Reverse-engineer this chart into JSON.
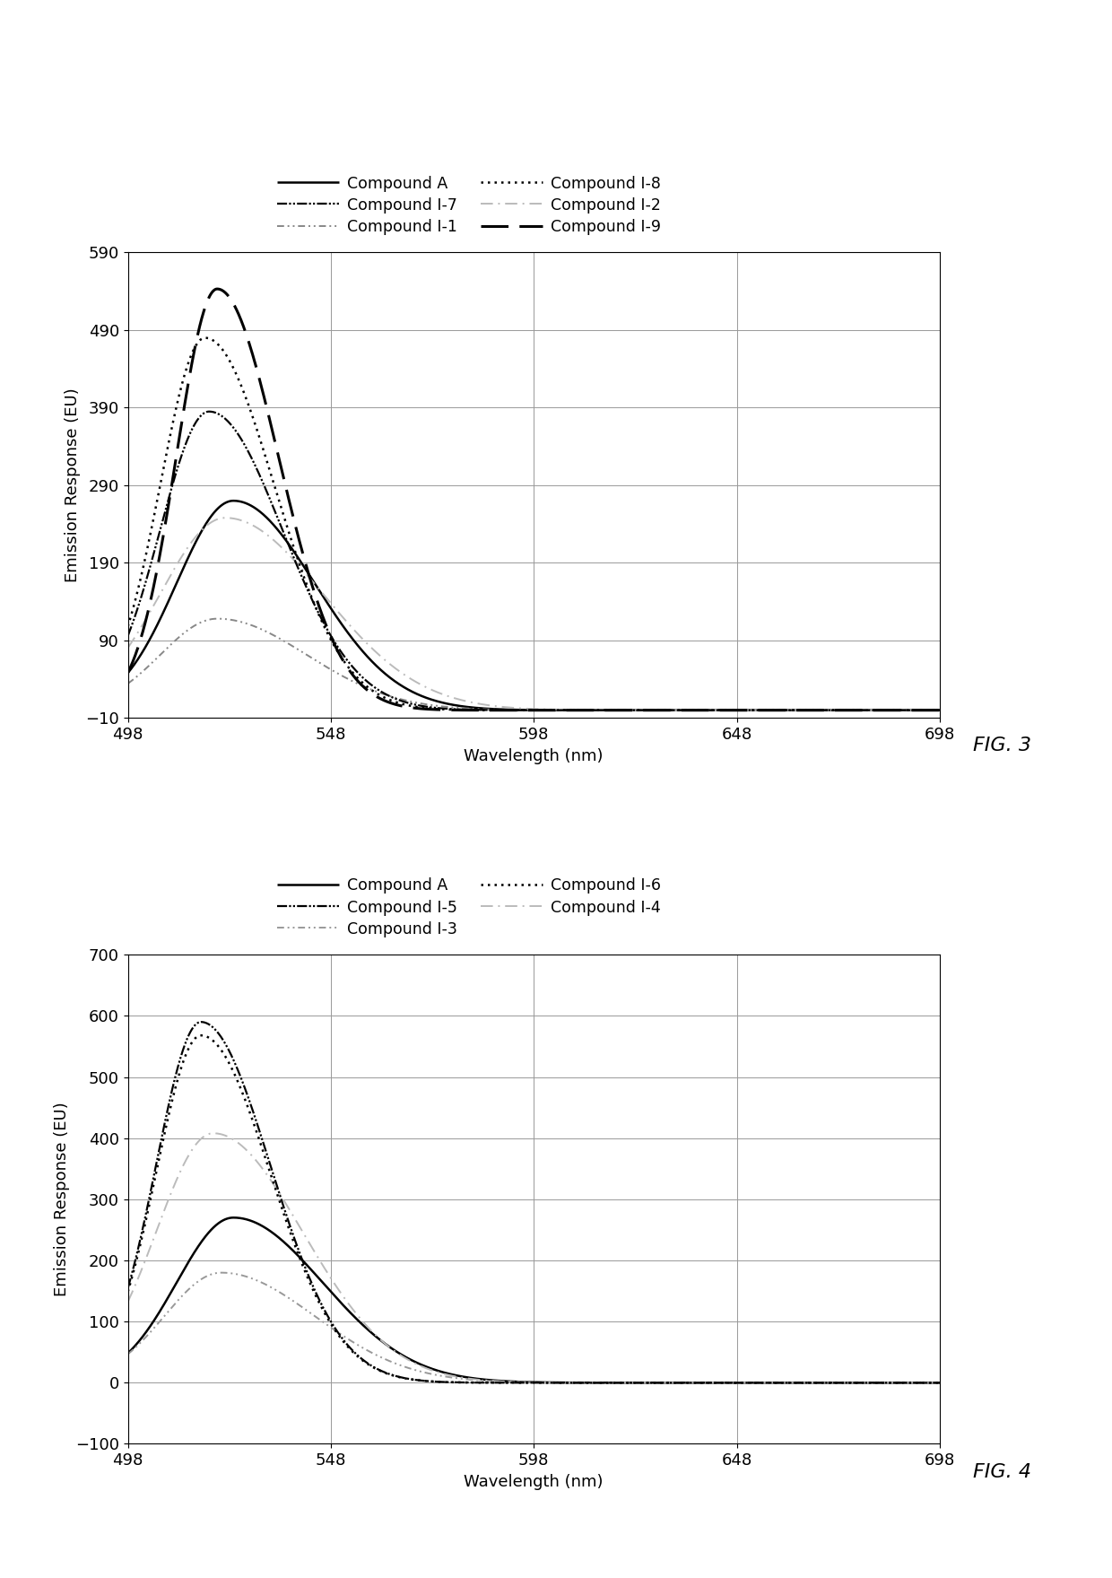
{
  "fig3": {
    "title": "FIG. 3",
    "xlabel": "Wavelength (nm)",
    "ylabel": "Emission Response (EU)",
    "xlim": [
      498,
      698
    ],
    "ylim": [
      -10,
      590
    ],
    "yticks": [
      -10,
      90,
      190,
      290,
      390,
      490,
      590
    ],
    "xticks": [
      498,
      548,
      598,
      648,
      698
    ],
    "compounds": [
      {
        "name": "Compound A",
        "peak_x": 524,
        "peak_y": 270,
        "sigma_l": 14,
        "sigma_r": 20,
        "style": "solid",
        "color": "#000000",
        "lw": 1.8
      },
      {
        "name": "Compound I-1",
        "peak_x": 520,
        "peak_y": 118,
        "sigma_l": 14,
        "sigma_r": 22,
        "style": "dash_dot_dot",
        "color": "#888888",
        "lw": 1.4
      },
      {
        "name": "Compound I-2",
        "peak_x": 522,
        "peak_y": 248,
        "sigma_l": 16,
        "sigma_r": 24,
        "style": "light_dashdot",
        "color": "#bbbbbb",
        "lw": 1.4
      },
      {
        "name": "Compound I-7",
        "peak_x": 518,
        "peak_y": 385,
        "sigma_l": 12,
        "sigma_r": 18,
        "style": "dash_dot_dot2",
        "color": "#000000",
        "lw": 1.6
      },
      {
        "name": "Compound I-8",
        "peak_x": 517,
        "peak_y": 480,
        "sigma_l": 11,
        "sigma_r": 17,
        "style": "dotted",
        "color": "#000000",
        "lw": 1.8
      },
      {
        "name": "Compound I-9",
        "peak_x": 520,
        "peak_y": 543,
        "sigma_l": 10,
        "sigma_r": 15,
        "style": "long_dash",
        "color": "#000000",
        "lw": 2.2
      }
    ],
    "legend": [
      [
        "Compound A",
        "Compound I-7"
      ],
      [
        "Compound I-1",
        "Compound I-8"
      ],
      [
        "Compound I-2",
        "Compound I-9"
      ]
    ]
  },
  "fig4": {
    "title": "FIG. 4",
    "xlabel": "Wavelength (nm)",
    "ylabel": "Emission Response (EU)",
    "xlim": [
      498,
      698
    ],
    "ylim": [
      -100,
      700
    ],
    "yticks": [
      -100,
      0,
      100,
      200,
      300,
      400,
      500,
      600,
      700
    ],
    "xticks": [
      498,
      548,
      598,
      648,
      698
    ],
    "compounds": [
      {
        "name": "Compound A",
        "peak_x": 524,
        "peak_y": 270,
        "sigma_l": 14,
        "sigma_r": 22,
        "style": "solid",
        "color": "#000000",
        "lw": 1.8
      },
      {
        "name": "Compound I-3",
        "peak_x": 521,
        "peak_y": 180,
        "sigma_l": 14,
        "sigma_r": 23,
        "style": "dash_dot_dot",
        "color": "#999999",
        "lw": 1.4
      },
      {
        "name": "Compound I-4",
        "peak_x": 519,
        "peak_y": 408,
        "sigma_l": 14,
        "sigma_r": 22,
        "style": "light_dashdot",
        "color": "#bbbbbb",
        "lw": 1.4
      },
      {
        "name": "Compound I-5",
        "peak_x": 516,
        "peak_y": 590,
        "sigma_l": 11,
        "sigma_r": 17,
        "style": "dash_dot_dot2",
        "color": "#000000",
        "lw": 1.6
      },
      {
        "name": "Compound I-6",
        "peak_x": 516,
        "peak_y": 568,
        "sigma_l": 11,
        "sigma_r": 17,
        "style": "dotted",
        "color": "#000000",
        "lw": 1.8
      }
    ],
    "legend": [
      [
        "Compound A",
        "Compound I-5"
      ],
      [
        "Compound I-3",
        "Compound I-6"
      ],
      [
        "Compound I-4",
        ""
      ]
    ]
  },
  "background": "#ffffff",
  "grid_color": "#999999",
  "font_size": 13
}
